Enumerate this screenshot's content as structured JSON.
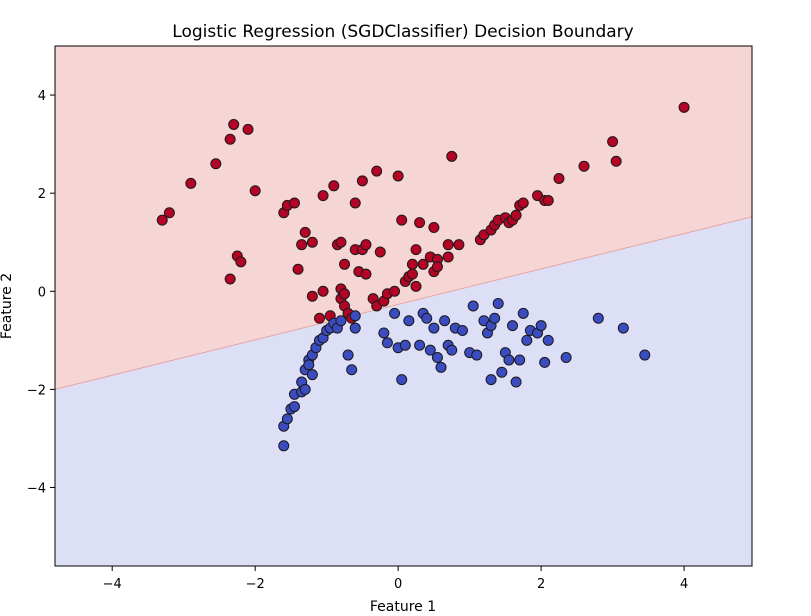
{
  "chart_data": {
    "type": "scatter",
    "title": "Logistic Regression (SGDClassifier) Decision Boundary",
    "xlabel": "Feature 1",
    "ylabel": "Feature 2",
    "xlim": [
      -4.8,
      4.95
    ],
    "ylim": [
      -5.6,
      5.0
    ],
    "xticks": [
      -4,
      -2,
      0,
      2,
      4
    ],
    "yticks": [
      -4,
      -2,
      0,
      2,
      4
    ],
    "grid": false,
    "decision_boundary": {
      "points": [
        [
          -4.8,
          -2.0
        ],
        [
          4.95,
          1.52
        ]
      ],
      "region_above_color": "#f5d6d4",
      "region_below_color": "#dcdff5",
      "line_color": "#e9a4a4"
    },
    "series": [
      {
        "class": 1,
        "color": "#b40426",
        "points": [
          [
            -3.3,
            1.45
          ],
          [
            -3.2,
            1.6
          ],
          [
            -2.9,
            2.2
          ],
          [
            -2.55,
            2.6
          ],
          [
            -2.35,
            3.1
          ],
          [
            -2.3,
            3.4
          ],
          [
            -2.1,
            3.3
          ],
          [
            -2.0,
            2.05
          ],
          [
            -2.35,
            0.25
          ],
          [
            -2.25,
            0.72
          ],
          [
            -2.2,
            0.6
          ],
          [
            -1.6,
            1.6
          ],
          [
            -1.55,
            1.75
          ],
          [
            -1.45,
            1.8
          ],
          [
            -1.4,
            0.45
          ],
          [
            -1.35,
            0.95
          ],
          [
            -1.3,
            1.2
          ],
          [
            -1.2,
            1.0
          ],
          [
            -1.2,
            -0.1
          ],
          [
            -1.1,
            -0.55
          ],
          [
            -1.05,
            1.95
          ],
          [
            -1.05,
            0.0
          ],
          [
            -0.95,
            -0.5
          ],
          [
            -0.9,
            2.15
          ],
          [
            -0.85,
            0.95
          ],
          [
            -0.8,
            1.0
          ],
          [
            -0.8,
            0.05
          ],
          [
            -0.8,
            -0.15
          ],
          [
            -0.75,
            0.55
          ],
          [
            -0.75,
            -0.05
          ],
          [
            -0.75,
            -0.3
          ],
          [
            -0.7,
            -0.45
          ],
          [
            -0.65,
            -0.55
          ],
          [
            -0.6,
            1.8
          ],
          [
            -0.6,
            0.85
          ],
          [
            -0.55,
            0.4
          ],
          [
            -0.5,
            2.25
          ],
          [
            -0.5,
            0.85
          ],
          [
            -0.45,
            0.95
          ],
          [
            -0.45,
            0.35
          ],
          [
            -0.35,
            -0.15
          ],
          [
            -0.3,
            -0.3
          ],
          [
            -0.3,
            2.45
          ],
          [
            -0.25,
            0.8
          ],
          [
            -0.2,
            -0.2
          ],
          [
            -0.15,
            -0.05
          ],
          [
            -0.05,
            0.0
          ],
          [
            0.0,
            2.35
          ],
          [
            0.05,
            1.45
          ],
          [
            0.1,
            0.2
          ],
          [
            0.15,
            0.3
          ],
          [
            0.2,
            0.35
          ],
          [
            0.2,
            0.55
          ],
          [
            0.25,
            0.85
          ],
          [
            0.25,
            0.1
          ],
          [
            0.3,
            1.4
          ],
          [
            0.35,
            0.55
          ],
          [
            0.45,
            0.7
          ],
          [
            0.5,
            0.4
          ],
          [
            0.5,
            1.3
          ],
          [
            0.55,
            0.65
          ],
          [
            0.55,
            0.5
          ],
          [
            0.7,
            0.95
          ],
          [
            0.7,
            0.7
          ],
          [
            0.75,
            2.75
          ],
          [
            0.85,
            0.95
          ],
          [
            1.15,
            1.05
          ],
          [
            1.2,
            1.15
          ],
          [
            1.3,
            1.25
          ],
          [
            1.35,
            1.35
          ],
          [
            1.4,
            1.45
          ],
          [
            1.5,
            1.5
          ],
          [
            1.55,
            1.4
          ],
          [
            1.6,
            1.45
          ],
          [
            1.65,
            1.55
          ],
          [
            1.7,
            1.75
          ],
          [
            1.75,
            1.8
          ],
          [
            1.95,
            1.95
          ],
          [
            2.05,
            1.85
          ],
          [
            2.1,
            1.85
          ],
          [
            2.25,
            2.3
          ],
          [
            2.6,
            2.55
          ],
          [
            3.0,
            3.05
          ],
          [
            3.05,
            2.65
          ],
          [
            4.0,
            3.75
          ]
        ]
      },
      {
        "class": 0,
        "color": "#3b4cc0",
        "points": [
          [
            -1.6,
            -3.15
          ],
          [
            -1.6,
            -2.75
          ],
          [
            -1.55,
            -2.6
          ],
          [
            -1.5,
            -2.4
          ],
          [
            -1.45,
            -2.35
          ],
          [
            -1.45,
            -2.1
          ],
          [
            -1.35,
            -2.05
          ],
          [
            -1.35,
            -1.85
          ],
          [
            -1.3,
            -2.0
          ],
          [
            -1.3,
            -1.6
          ],
          [
            -1.25,
            -1.4
          ],
          [
            -1.25,
            -1.5
          ],
          [
            -1.2,
            -1.7
          ],
          [
            -1.2,
            -1.3
          ],
          [
            -1.15,
            -1.15
          ],
          [
            -1.1,
            -1.0
          ],
          [
            -1.05,
            -0.95
          ],
          [
            -1.0,
            -0.8
          ],
          [
            -0.95,
            -0.75
          ],
          [
            -0.9,
            -0.65
          ],
          [
            -0.85,
            -0.75
          ],
          [
            -0.8,
            -0.6
          ],
          [
            -0.7,
            -1.3
          ],
          [
            -0.65,
            -1.6
          ],
          [
            -0.6,
            -0.75
          ],
          [
            -0.6,
            -0.5
          ],
          [
            -0.2,
            -0.85
          ],
          [
            -0.15,
            -1.05
          ],
          [
            -0.05,
            -0.45
          ],
          [
            0.0,
            -1.15
          ],
          [
            0.05,
            -1.8
          ],
          [
            0.1,
            -1.1
          ],
          [
            0.15,
            -0.6
          ],
          [
            0.3,
            -1.1
          ],
          [
            0.35,
            -0.45
          ],
          [
            0.4,
            -0.55
          ],
          [
            0.45,
            -1.2
          ],
          [
            0.5,
            -0.75
          ],
          [
            0.55,
            -1.35
          ],
          [
            0.6,
            -1.55
          ],
          [
            0.65,
            -0.6
          ],
          [
            0.7,
            -1.1
          ],
          [
            0.75,
            -1.2
          ],
          [
            0.8,
            -0.75
          ],
          [
            0.9,
            -0.8
          ],
          [
            1.0,
            -1.25
          ],
          [
            1.05,
            -0.3
          ],
          [
            1.1,
            -1.3
          ],
          [
            1.2,
            -0.6
          ],
          [
            1.25,
            -0.85
          ],
          [
            1.3,
            -1.8
          ],
          [
            1.3,
            -0.7
          ],
          [
            1.35,
            -0.55
          ],
          [
            1.4,
            -0.25
          ],
          [
            1.45,
            -1.65
          ],
          [
            1.5,
            -1.25
          ],
          [
            1.55,
            -1.4
          ],
          [
            1.6,
            -0.7
          ],
          [
            1.65,
            -1.85
          ],
          [
            1.7,
            -1.4
          ],
          [
            1.75,
            -0.45
          ],
          [
            1.8,
            -1.0
          ],
          [
            1.85,
            -0.8
          ],
          [
            1.95,
            -0.85
          ],
          [
            2.0,
            -0.7
          ],
          [
            2.05,
            -1.45
          ],
          [
            2.1,
            -1.0
          ],
          [
            2.35,
            -1.35
          ],
          [
            2.8,
            -0.55
          ],
          [
            3.15,
            -0.75
          ],
          [
            3.45,
            -1.3
          ]
        ]
      }
    ]
  }
}
